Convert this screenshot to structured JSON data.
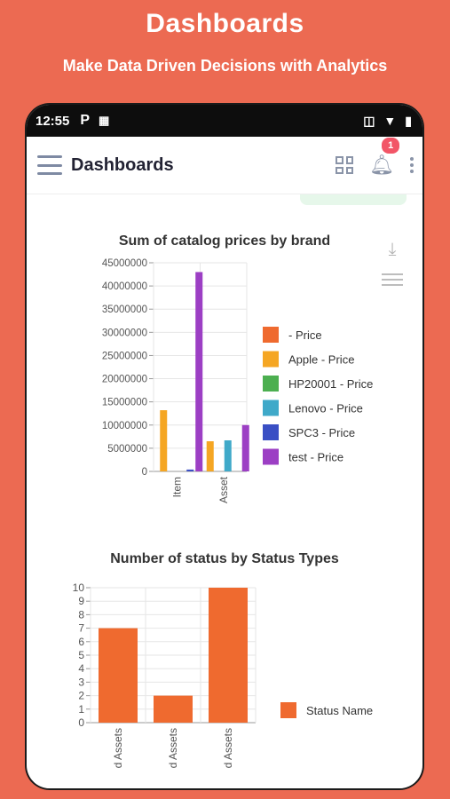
{
  "promo": {
    "title": "Dashboards",
    "subtitle": "Make Data Driven Decisions with Analytics"
  },
  "statusbar": {
    "time": "12:55",
    "left_icons": [
      "p-icon",
      "qr-icon"
    ],
    "right_icons": [
      "vibrate-icon",
      "wifi-icon",
      "battery-icon"
    ]
  },
  "appbar": {
    "title": "Dashboards",
    "notification_count": "1"
  },
  "colors": {
    "background": "#ec6a52",
    "bar_orange": "#ef6a2f",
    "bar_apple": "#f5a623",
    "bar_hp": "#4caf50",
    "bar_lenovo": "#3fa9c9",
    "bar_spc3": "#3a4fc4",
    "bar_test": "#9c3fc4"
  },
  "chart_data": [
    {
      "type": "bar",
      "title": "Sum of catalog prices by brand",
      "categories": [
        "Item",
        "Asset"
      ],
      "series": [
        {
          "name": " - Price",
          "values": [
            0,
            0
          ],
          "color": "#ef6a2f"
        },
        {
          "name": "Apple - Price",
          "values": [
            13200000,
            6500000
          ],
          "color": "#f5a623"
        },
        {
          "name": "HP20001 - Price",
          "values": [
            0,
            0
          ],
          "color": "#4caf50"
        },
        {
          "name": "Lenovo - Price",
          "values": [
            0,
            6700000
          ],
          "color": "#3fa9c9"
        },
        {
          "name": "SPC3 - Price",
          "values": [
            400000,
            0
          ],
          "color": "#3a4fc4"
        },
        {
          "name": "test - Price",
          "values": [
            43000000,
            10000000
          ],
          "color": "#9c3fc4"
        }
      ],
      "yticks": [
        "0",
        "5000000",
        "10000000",
        "15000000",
        "20000000",
        "25000000",
        "30000000",
        "35000000",
        "40000000",
        "45000000"
      ],
      "ylim": [
        0,
        45000000
      ],
      "grid": true,
      "legend": "right"
    },
    {
      "type": "bar",
      "title": "Number of status by Status Types",
      "categories": [
        "d Assets",
        "d Assets",
        "d Assets"
      ],
      "series": [
        {
          "name": "Status Name",
          "values": [
            7,
            2,
            10
          ],
          "color": "#ef6a2f"
        }
      ],
      "yticks": [
        "0",
        "1",
        "2",
        "3",
        "4",
        "5",
        "6",
        "7",
        "8",
        "9",
        "10"
      ],
      "ylim": [
        0,
        10
      ],
      "grid": true,
      "legend": "right"
    }
  ]
}
